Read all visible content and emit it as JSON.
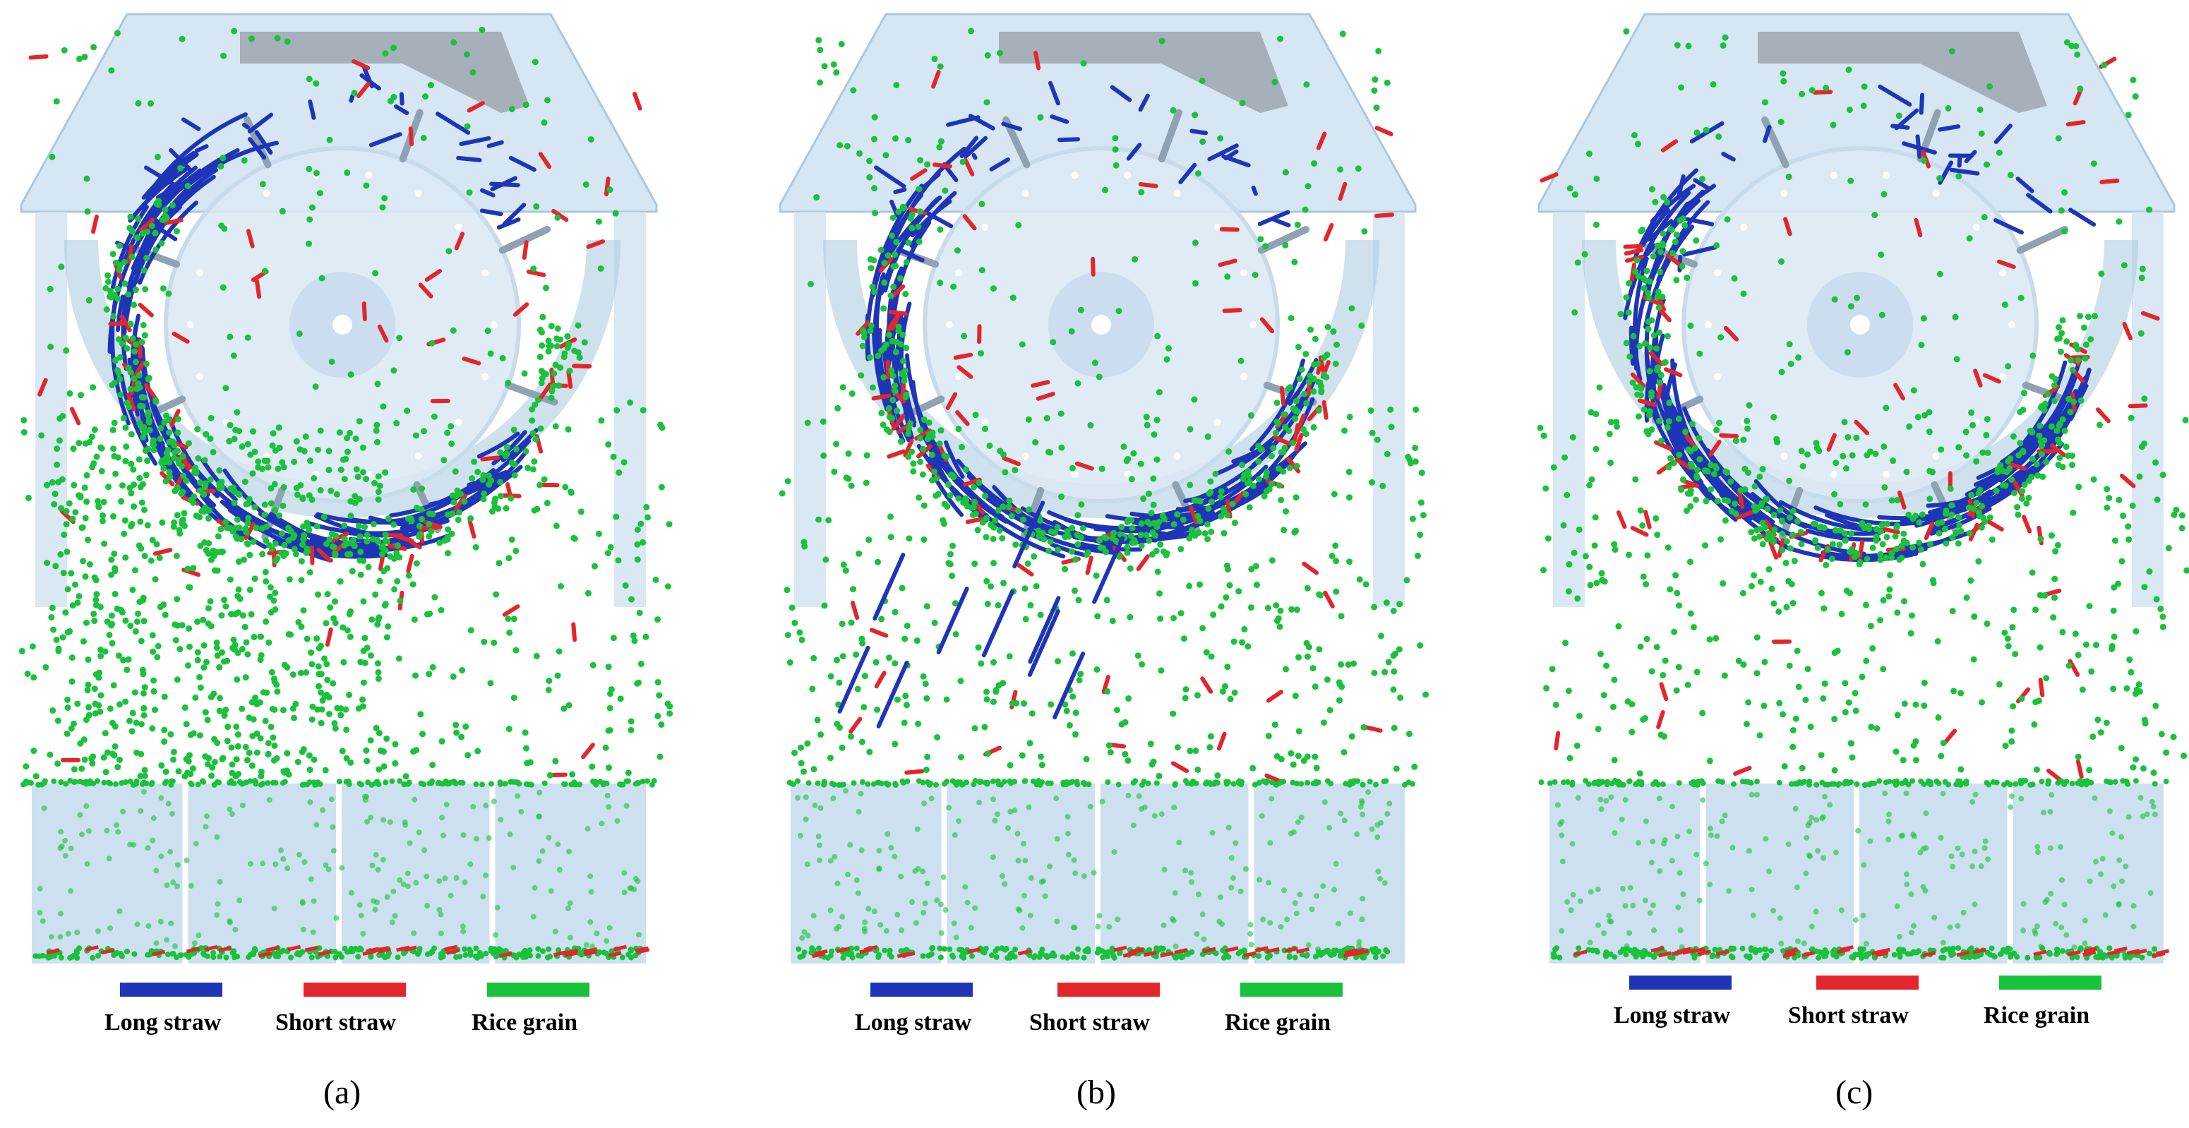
{
  "colors": {
    "long_straw": "#1f35b8",
    "short_straw": "#e3262b",
    "rice_grain": "#19c23a",
    "housing": "#cfe2f0",
    "housing_edge": "#a9c8e0",
    "drum": "#dce9f4",
    "bin": "#bcd6ea"
  },
  "legend": {
    "long_straw": "Long straw",
    "short_straw": "Short straw",
    "rice_grain": "Rice grain"
  },
  "panels": [
    {
      "id": "a",
      "label": "(a)"
    },
    {
      "id": "b",
      "label": "(b)"
    },
    {
      "id": "c",
      "label": "(c)"
    }
  ]
}
